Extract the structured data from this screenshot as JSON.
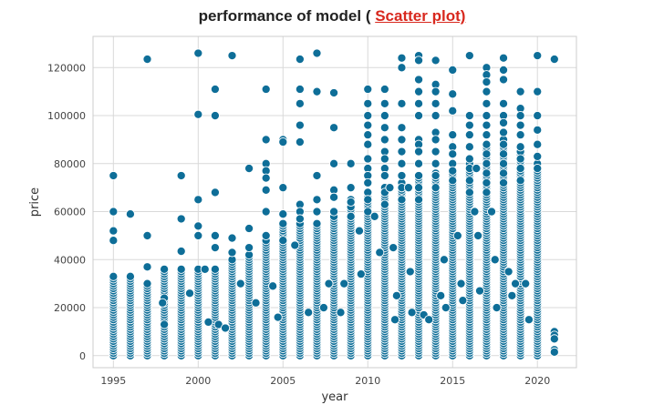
{
  "title_prefix": "performance of model ( ",
  "title_highlight": "Scatter plot)",
  "colors": {
    "point_fill": "#0e6e98",
    "point_edge": "#ffffff",
    "grid": "#d9d9d9",
    "frame": "#cccccc",
    "title_accent": "#d8281e"
  },
  "chart_data": {
    "type": "scatter",
    "title": "performance of model ( Scatter plot)",
    "xlabel": "year",
    "ylabel": "price",
    "xlim": [
      1993.8,
      2022.3
    ],
    "ylim": [
      -5000,
      133000
    ],
    "xticks": [
      1995,
      2000,
      2005,
      2010,
      2015,
      2020
    ],
    "yticks": [
      0,
      20000,
      40000,
      60000,
      80000,
      100000,
      120000
    ],
    "grid": true,
    "legend": "none",
    "series": [
      {
        "points": [
          [
            1995,
            75000
          ],
          [
            1995,
            60000
          ],
          [
            1995,
            52000
          ],
          [
            1995,
            48000
          ],
          [
            1995,
            33000
          ],
          [
            1996,
            59000
          ],
          [
            1996,
            33000
          ],
          [
            1997,
            123500
          ],
          [
            1997,
            50000
          ],
          [
            1997,
            37000
          ],
          [
            1998,
            24000
          ],
          [
            1998,
            36000
          ],
          [
            1999,
            75000
          ],
          [
            1999,
            57000
          ],
          [
            1999,
            43500
          ],
          [
            1999,
            36000
          ],
          [
            2000,
            126000
          ],
          [
            2000,
            100500
          ],
          [
            2000,
            65000
          ],
          [
            2000,
            54000
          ],
          [
            2000,
            50000
          ],
          [
            2001,
            111000
          ],
          [
            2001,
            100000
          ],
          [
            2001,
            68000
          ],
          [
            2001,
            50000
          ],
          [
            2001,
            45000
          ],
          [
            2002,
            125000
          ],
          [
            2002,
            49000
          ],
          [
            2002,
            43000
          ],
          [
            2003,
            78000
          ],
          [
            2003,
            53000
          ],
          [
            2003,
            45000
          ],
          [
            2004,
            111000
          ],
          [
            2004,
            90000
          ],
          [
            2004,
            80000
          ],
          [
            2004,
            77000
          ],
          [
            2004,
            74000
          ],
          [
            2004,
            69000
          ],
          [
            2004,
            60000
          ],
          [
            2004,
            50000
          ],
          [
            2005,
            90000
          ],
          [
            2005,
            89000
          ],
          [
            2005,
            70000
          ],
          [
            2005,
            59000
          ],
          [
            2005,
            55000
          ],
          [
            2005,
            48000
          ],
          [
            2006,
            123500
          ],
          [
            2006,
            111000
          ],
          [
            2006,
            105000
          ],
          [
            2006,
            96000
          ],
          [
            2006,
            89000
          ],
          [
            2006,
            63000
          ],
          [
            2006,
            60000
          ],
          [
            2006,
            57000
          ],
          [
            2007,
            126000
          ],
          [
            2007,
            110000
          ],
          [
            2007,
            75000
          ],
          [
            2007,
            65000
          ],
          [
            2007,
            60000
          ],
          [
            2007,
            55000
          ],
          [
            2008,
            109500
          ],
          [
            2008,
            95000
          ],
          [
            2008,
            80000
          ],
          [
            2008,
            69000
          ],
          [
            2008,
            66000
          ],
          [
            2008,
            60000
          ],
          [
            2009,
            80000
          ],
          [
            2009,
            70000
          ],
          [
            2009,
            65000
          ],
          [
            2009,
            64000
          ],
          [
            2009,
            58000
          ],
          [
            2010,
            111000
          ],
          [
            2010,
            105000
          ],
          [
            2010,
            100000
          ],
          [
            2010,
            96000
          ],
          [
            2010,
            92000
          ],
          [
            2010,
            88000
          ],
          [
            2010,
            82000
          ],
          [
            2010,
            78000
          ],
          [
            2010,
            75000
          ],
          [
            2010,
            72000
          ],
          [
            2010,
            68000
          ],
          [
            2010,
            65000
          ],
          [
            2010,
            60000
          ],
          [
            2011,
            111000
          ],
          [
            2011,
            105000
          ],
          [
            2011,
            100000
          ],
          [
            2011,
            95000
          ],
          [
            2011,
            90000
          ],
          [
            2011,
            85000
          ],
          [
            2011,
            82000
          ],
          [
            2011,
            78000
          ],
          [
            2011,
            75000
          ],
          [
            2011,
            70000
          ],
          [
            2011,
            68000
          ],
          [
            2011,
            63000
          ],
          [
            2012,
            124000
          ],
          [
            2012,
            120000
          ],
          [
            2012,
            105000
          ],
          [
            2012,
            95000
          ],
          [
            2012,
            90000
          ],
          [
            2012,
            85000
          ],
          [
            2012,
            80000
          ],
          [
            2012,
            75000
          ],
          [
            2012,
            70000
          ],
          [
            2012,
            65000
          ],
          [
            2013,
            125000
          ],
          [
            2013,
            123000
          ],
          [
            2013,
            115000
          ],
          [
            2013,
            110000
          ],
          [
            2013,
            105000
          ],
          [
            2013,
            100000
          ],
          [
            2013,
            90000
          ],
          [
            2013,
            88000
          ],
          [
            2013,
            85000
          ],
          [
            2013,
            80000
          ],
          [
            2013,
            75000
          ],
          [
            2013,
            70000
          ],
          [
            2013,
            65000
          ],
          [
            2014,
            123000
          ],
          [
            2014,
            113000
          ],
          [
            2014,
            110000
          ],
          [
            2014,
            105000
          ],
          [
            2014,
            100000
          ],
          [
            2014,
            93000
          ],
          [
            2014,
            90000
          ],
          [
            2014,
            85000
          ],
          [
            2014,
            80000
          ],
          [
            2014,
            75000
          ],
          [
            2014,
            70000
          ],
          [
            2015,
            119000
          ],
          [
            2015,
            109000
          ],
          [
            2015,
            102000
          ],
          [
            2015,
            92000
          ],
          [
            2015,
            87000
          ],
          [
            2015,
            84000
          ],
          [
            2015,
            80000
          ],
          [
            2015,
            77000
          ],
          [
            2015,
            73000
          ],
          [
            2016,
            125000
          ],
          [
            2016,
            100000
          ],
          [
            2016,
            96000
          ],
          [
            2016,
            92000
          ],
          [
            2016,
            87000
          ],
          [
            2016,
            82000
          ],
          [
            2016,
            78000
          ],
          [
            2016,
            73000
          ],
          [
            2016,
            68000
          ],
          [
            2017,
            120000
          ],
          [
            2017,
            117000
          ],
          [
            2017,
            114000
          ],
          [
            2017,
            110000
          ],
          [
            2017,
            105000
          ],
          [
            2017,
            100000
          ],
          [
            2017,
            96000
          ],
          [
            2017,
            92000
          ],
          [
            2017,
            88000
          ],
          [
            2017,
            84000
          ],
          [
            2017,
            80000
          ],
          [
            2017,
            76000
          ],
          [
            2017,
            72000
          ],
          [
            2017,
            68000
          ],
          [
            2018,
            124000
          ],
          [
            2018,
            119000
          ],
          [
            2018,
            115000
          ],
          [
            2018,
            105000
          ],
          [
            2018,
            100000
          ],
          [
            2018,
            97000
          ],
          [
            2018,
            93000
          ],
          [
            2018,
            88000
          ],
          [
            2018,
            84000
          ],
          [
            2018,
            80000
          ],
          [
            2018,
            76000
          ],
          [
            2018,
            72000
          ],
          [
            2019,
            110000
          ],
          [
            2019,
            103000
          ],
          [
            2019,
            100000
          ],
          [
            2019,
            96000
          ],
          [
            2019,
            92000
          ],
          [
            2019,
            87000
          ],
          [
            2019,
            82000
          ],
          [
            2019,
            78000
          ],
          [
            2019,
            73000
          ],
          [
            2020,
            125000
          ],
          [
            2020,
            110000
          ],
          [
            2020,
            100000
          ],
          [
            2020,
            94000
          ],
          [
            2020,
            88000
          ],
          [
            2020,
            83000
          ],
          [
            2020,
            78000
          ],
          [
            2021,
            123500
          ],
          [
            2021,
            10000
          ],
          [
            2021,
            8500
          ],
          [
            2021,
            7000
          ],
          [
            2021,
            2500
          ],
          [
            2021,
            1500
          ],
          [
            1998,
            13000
          ],
          [
            1997.9,
            22000
          ],
          [
            2000.6,
            14000
          ],
          [
            2001.2,
            13000
          ],
          [
            2001.6,
            11500
          ],
          [
            2002.5,
            30000
          ],
          [
            2003.4,
            22000
          ],
          [
            2004.4,
            29000
          ],
          [
            2004.7,
            16000
          ],
          [
            2005.7,
            46000
          ],
          [
            2006.5,
            18000
          ],
          [
            2007.4,
            20000
          ],
          [
            2007.7,
            30000
          ],
          [
            2008.4,
            18000
          ],
          [
            2008.6,
            30000
          ],
          [
            2009.5,
            52000
          ],
          [
            2009.6,
            34000
          ],
          [
            2010.4,
            58000
          ],
          [
            2010.7,
            43000
          ],
          [
            2011.3,
            70000
          ],
          [
            2011.5,
            45000
          ],
          [
            2011.6,
            15000
          ],
          [
            2011.7,
            25000
          ],
          [
            2012.4,
            70000
          ],
          [
            2012.5,
            35000
          ],
          [
            2012.6,
            18000
          ],
          [
            2013.3,
            17000
          ],
          [
            2013.6,
            15000
          ],
          [
            2014.3,
            25000
          ],
          [
            2014.5,
            40000
          ],
          [
            2014.6,
            20000
          ],
          [
            2015.3,
            50000
          ],
          [
            2015.5,
            30000
          ],
          [
            2015.6,
            23000
          ],
          [
            2016.3,
            60000
          ],
          [
            2016.4,
            78000
          ],
          [
            2016.5,
            50000
          ],
          [
            2016.6,
            27000
          ],
          [
            2017.3,
            60000
          ],
          [
            2017.5,
            40000
          ],
          [
            2017.6,
            20000
          ],
          [
            2018.3,
            35000
          ],
          [
            2018.5,
            25000
          ],
          [
            2018.7,
            30000
          ],
          [
            2019.3,
            30000
          ],
          [
            2019.5,
            15000
          ],
          [
            2000.4,
            36000
          ],
          [
            1999.5,
            26000
          ]
        ],
        "dense_columns": [
          {
            "x": 1995,
            "from": 0,
            "to": 32000,
            "step": 1000
          },
          {
            "x": 1996,
            "from": 0,
            "to": 32000,
            "step": 1000
          },
          {
            "x": 1997,
            "from": 0,
            "to": 30000,
            "step": 1000
          },
          {
            "x": 1998,
            "from": 0,
            "to": 35000,
            "step": 1000
          },
          {
            "x": 1999,
            "from": 0,
            "to": 35000,
            "step": 1000
          },
          {
            "x": 2000,
            "from": 0,
            "to": 36000,
            "step": 1000
          },
          {
            "x": 2001,
            "from": 0,
            "to": 36000,
            "step": 1000
          },
          {
            "x": 2002,
            "from": 0,
            "to": 40000,
            "step": 1000
          },
          {
            "x": 2003,
            "from": 0,
            "to": 42000,
            "step": 1000
          },
          {
            "x": 2004,
            "from": 0,
            "to": 48000,
            "step": 1000
          },
          {
            "x": 2005,
            "from": 0,
            "to": 55000,
            "step": 1000
          },
          {
            "x": 2006,
            "from": 0,
            "to": 55000,
            "step": 1000
          },
          {
            "x": 2007,
            "from": 0,
            "to": 55000,
            "step": 1000
          },
          {
            "x": 2008,
            "from": 0,
            "to": 58000,
            "step": 1000
          },
          {
            "x": 2009,
            "from": 0,
            "to": 62000,
            "step": 1000
          },
          {
            "x": 2010,
            "from": 0,
            "to": 66000,
            "step": 1000
          },
          {
            "x": 2011,
            "from": 0,
            "to": 68000,
            "step": 1000
          },
          {
            "x": 2012,
            "from": 0,
            "to": 72000,
            "step": 1000
          },
          {
            "x": 2013,
            "from": 0,
            "to": 75000,
            "step": 1000
          },
          {
            "x": 2014,
            "from": 0,
            "to": 76000,
            "step": 1000
          },
          {
            "x": 2015,
            "from": 0,
            "to": 76000,
            "step": 1000
          },
          {
            "x": 2016,
            "from": 0,
            "to": 80000,
            "step": 1000
          },
          {
            "x": 2017,
            "from": 0,
            "to": 88000,
            "step": 1000
          },
          {
            "x": 2018,
            "from": 0,
            "to": 90000,
            "step": 1000
          },
          {
            "x": 2019,
            "from": 0,
            "to": 85000,
            "step": 1000
          },
          {
            "x": 2020,
            "from": 0,
            "to": 80000,
            "step": 1000
          }
        ]
      }
    ]
  }
}
